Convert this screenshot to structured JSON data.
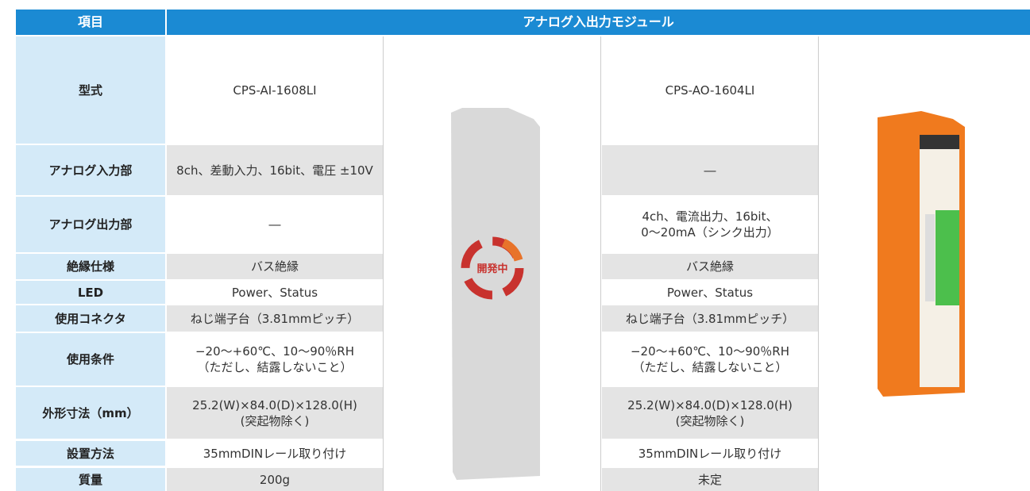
{
  "table": {
    "header": [
      "項目",
      "アナログ入出力モジュール"
    ],
    "badge": "開発中",
    "rows": [
      {
        "label": "型式",
        "cells": [
          [
            "CPS-AI-1608LI"
          ],
          [
            "CPS-AO-1604LI"
          ]
        ]
      },
      {
        "label": "アナログ入力部",
        "cells": [
          [
            "8ch、差動入力、16bit、電圧 ±10V"
          ],
          [
            "―"
          ]
        ]
      },
      {
        "label": "アナログ出力部",
        "cells": [
          [
            "―"
          ],
          [
            "4ch、電流出力、16bit、",
            "0〜20mA（シンク出力）"
          ]
        ]
      },
      {
        "label": "絶縁仕様",
        "cells": [
          [
            "バス絶縁"
          ],
          [
            "バス絶縁"
          ]
        ]
      },
      {
        "label": "LED",
        "cells": [
          [
            "Power、Status"
          ],
          [
            "Power、Status"
          ]
        ]
      },
      {
        "label": "使用コネクタ",
        "cells": [
          [
            "ねじ端子台（3.81mmピッチ）"
          ],
          [
            "ねじ端子台（3.81mmピッチ）"
          ]
        ]
      },
      {
        "label": "使用条件",
        "cells": [
          [
            "−20〜+60℃、10〜90％RH",
            "（ただし、結露しないこと）"
          ],
          [
            "−20〜+60℃、10〜90％RH",
            "（ただし、結露しないこと）"
          ]
        ]
      },
      {
        "label": "外形寸法（mm）",
        "cells": [
          [
            "25.2(W)×84.0(D)×128.0(H)",
            "(突起物除く)"
          ],
          [
            "25.2(W)×84.0(D)×128.0(H)",
            "(突起物除く)"
          ]
        ]
      },
      {
        "label": "設置方法",
        "cells": [
          [
            "35mmDINレール取り付け"
          ],
          [
            "35mmDINレール取り付け"
          ]
        ]
      },
      {
        "label": "質量",
        "cells": [
          [
            "200g"
          ],
          [
            "未定"
          ]
        ]
      }
    ]
  }
}
